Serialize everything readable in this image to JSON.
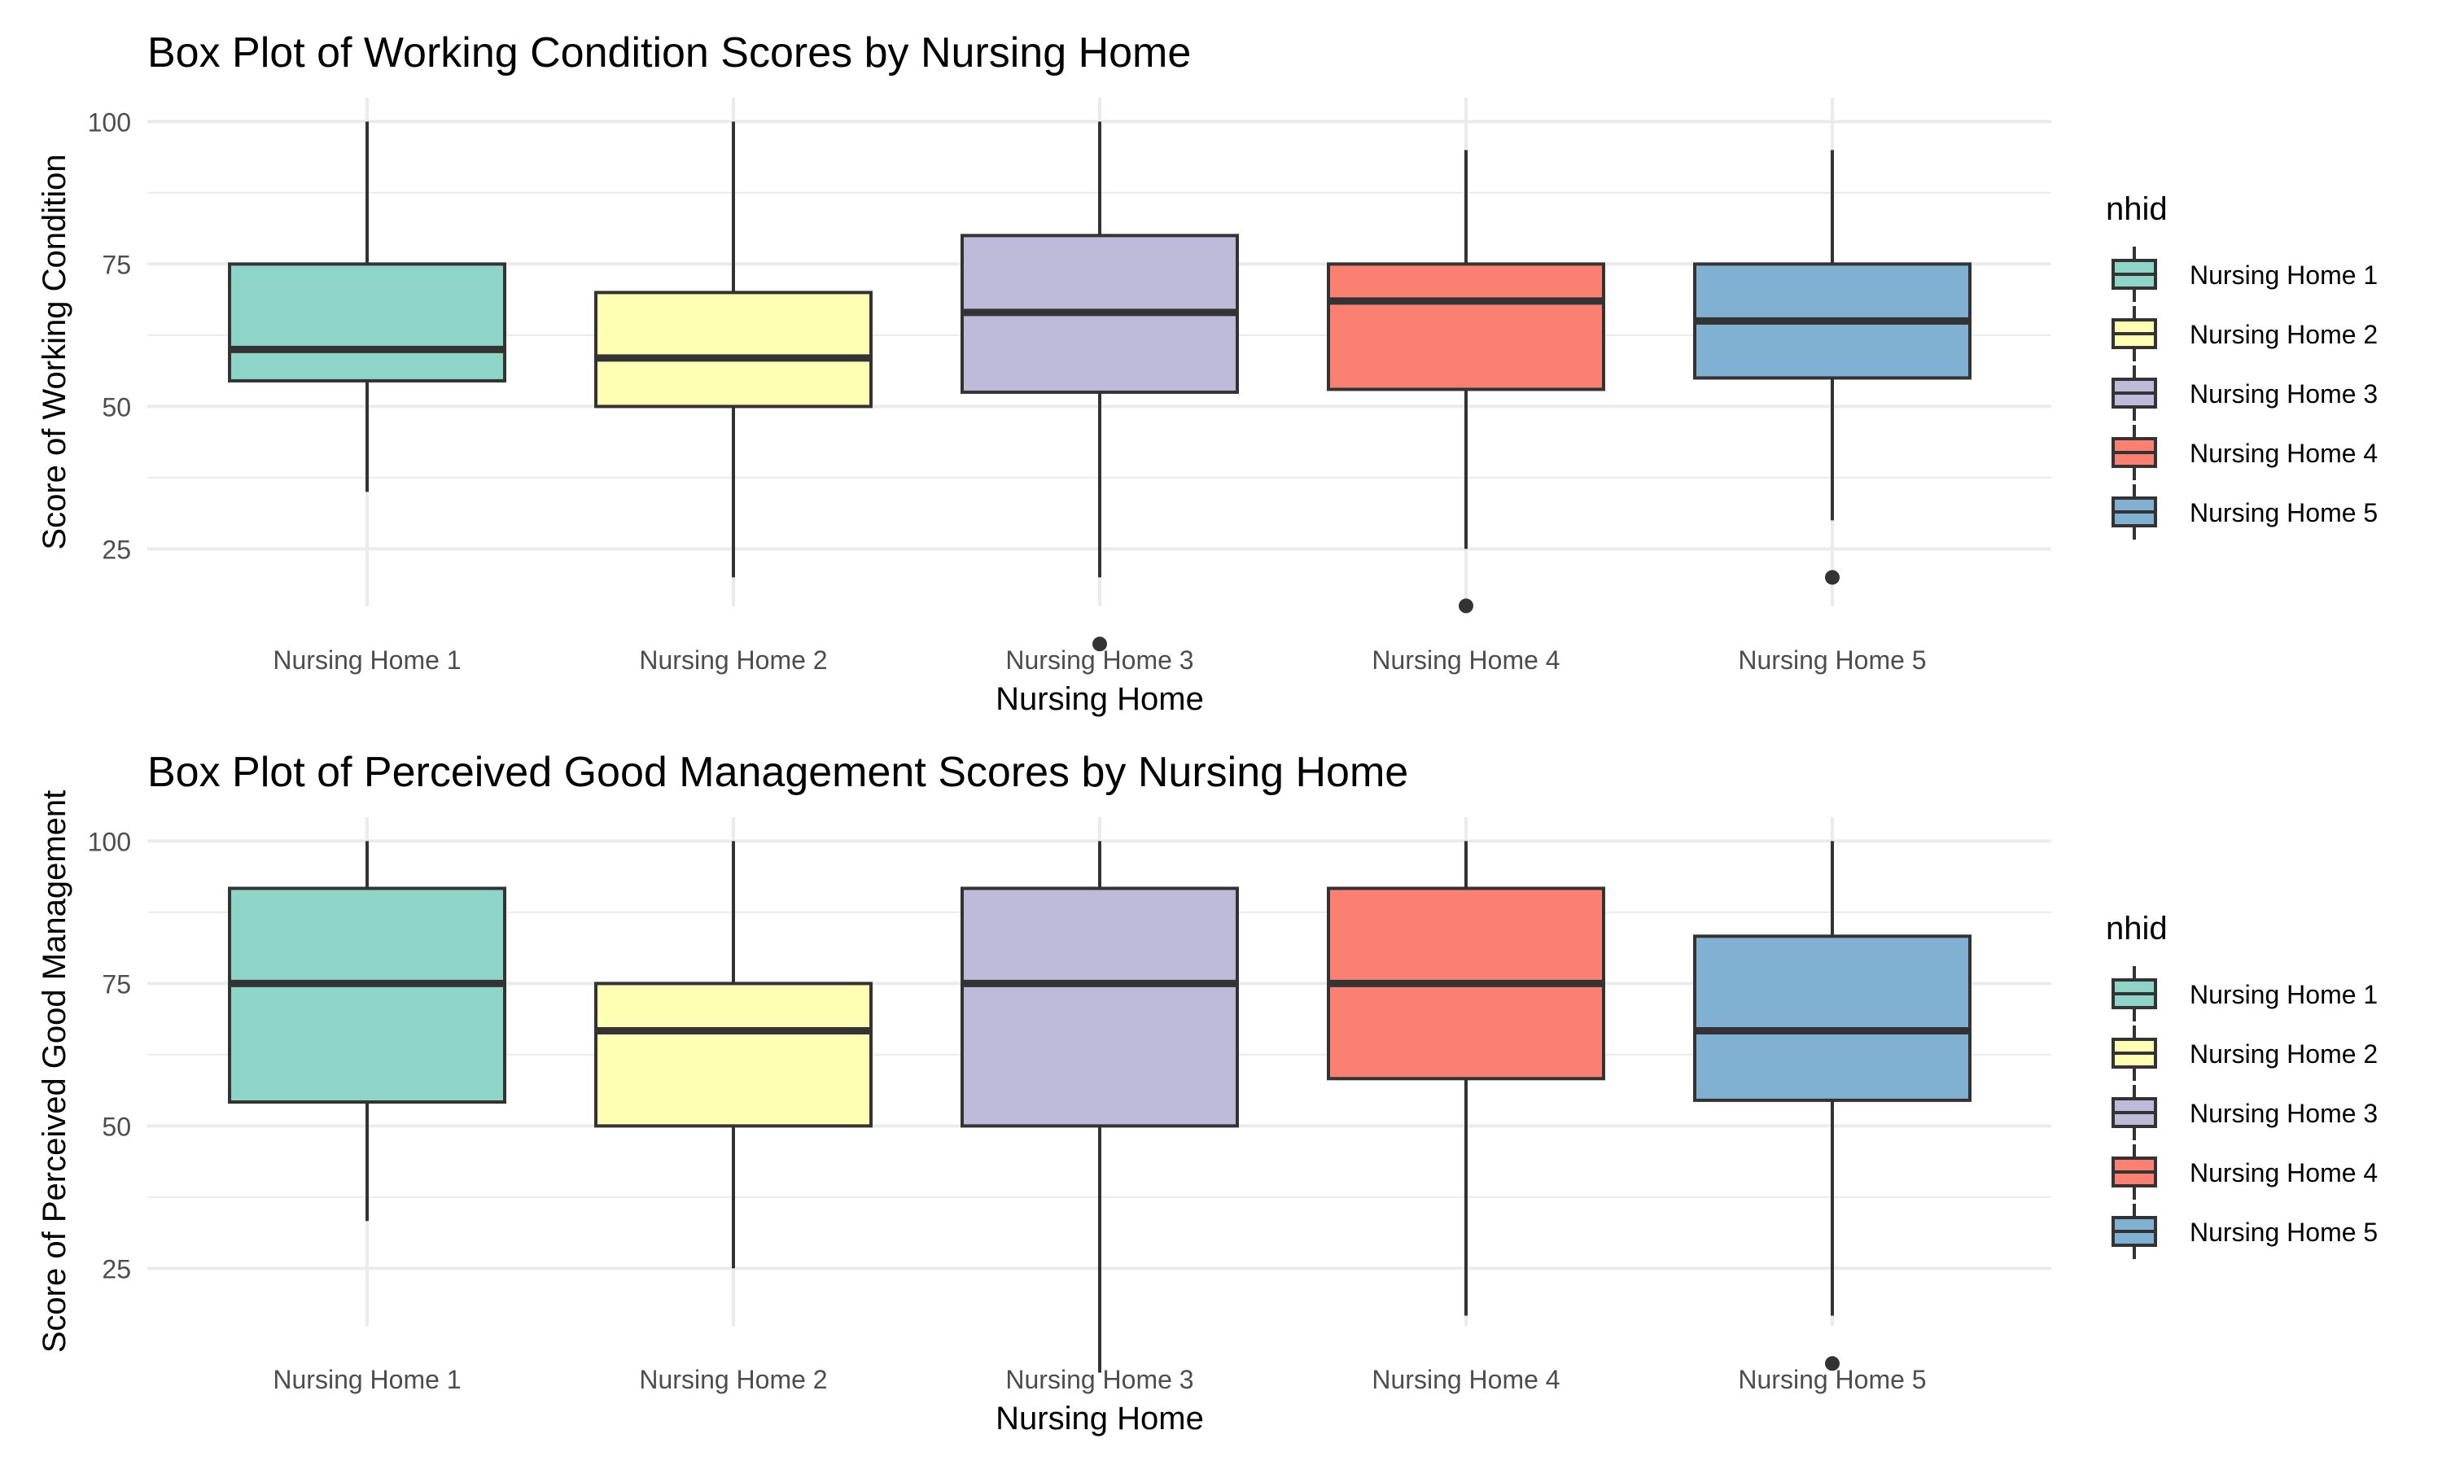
{
  "chart_data": [
    {
      "type": "box",
      "title": "Box Plot of Working Condition Scores by Nursing Home",
      "xlabel": "Nursing Home",
      "ylabel": "Score of Working Condition",
      "categories": [
        "Nursing Home 1",
        "Nursing Home 2",
        "Nursing Home 3",
        "Nursing Home 4",
        "Nursing Home 5"
      ],
      "ylim": [
        0,
        105
      ],
      "yticks": [
        25,
        50,
        75,
        100
      ],
      "grid": true,
      "boxes": [
        {
          "category": "Nursing Home 1",
          "whisker_low": 35,
          "q1": 54.5,
          "median": 60,
          "q3": 75,
          "whisker_high": 100,
          "outliers": []
        },
        {
          "category": "Nursing Home 2",
          "whisker_low": 20,
          "q1": 50,
          "median": 58.5,
          "q3": 70,
          "whisker_high": 100,
          "outliers": []
        },
        {
          "category": "Nursing Home 3",
          "whisker_low": 20,
          "q1": 52.5,
          "median": 66.5,
          "q3": 80,
          "whisker_high": 100,
          "outliers": [
            8.3
          ]
        },
        {
          "category": "Nursing Home 4",
          "whisker_low": 25,
          "q1": 53,
          "median": 68.5,
          "q3": 75,
          "whisker_high": 95,
          "outliers": [
            15
          ]
        },
        {
          "category": "Nursing Home 5",
          "whisker_low": 30,
          "q1": 55,
          "median": 65,
          "q3": 75,
          "whisker_high": 95,
          "outliers": [
            20
          ]
        }
      ],
      "legend": {
        "title": "nhid",
        "position": "right",
        "entries": [
          "Nursing Home 1",
          "Nursing Home 2",
          "Nursing Home 3",
          "Nursing Home 4",
          "Nursing Home 5"
        ]
      }
    },
    {
      "type": "box",
      "title": "Box Plot of Perceived Good Management Scores by Nursing Home",
      "xlabel": "Nursing Home",
      "ylabel": "Score of Perceived Good Management",
      "categories": [
        "Nursing Home 1",
        "Nursing Home 2",
        "Nursing Home 3",
        "Nursing Home 4",
        "Nursing Home 5"
      ],
      "ylim": [
        0,
        105
      ],
      "yticks": [
        25,
        50,
        75,
        100
      ],
      "grid": true,
      "boxes": [
        {
          "category": "Nursing Home 1",
          "whisker_low": 33.3,
          "q1": 54.2,
          "median": 75,
          "q3": 91.7,
          "whisker_high": 100,
          "outliers": []
        },
        {
          "category": "Nursing Home 2",
          "whisker_low": 25,
          "q1": 50,
          "median": 66.7,
          "q3": 75,
          "whisker_high": 100,
          "outliers": []
        },
        {
          "category": "Nursing Home 3",
          "whisker_low": 6.7,
          "q1": 50,
          "median": 75,
          "q3": 91.7,
          "whisker_high": 100,
          "outliers": []
        },
        {
          "category": "Nursing Home 4",
          "whisker_low": 16.7,
          "q1": 58.3,
          "median": 75,
          "q3": 91.7,
          "whisker_high": 100,
          "outliers": []
        },
        {
          "category": "Nursing Home 5",
          "whisker_low": 16.7,
          "q1": 54.5,
          "median": 66.7,
          "q3": 83.3,
          "whisker_high": 100,
          "outliers": [
            8.3
          ]
        }
      ],
      "legend": {
        "title": "nhid",
        "position": "right",
        "entries": [
          "Nursing Home 1",
          "Nursing Home 2",
          "Nursing Home 3",
          "Nursing Home 4",
          "Nursing Home 5"
        ]
      }
    }
  ],
  "colors": {
    "Nursing Home 1": "#8ed5c8",
    "Nursing Home 2": "#ffffb3",
    "Nursing Home 3": "#bebada",
    "Nursing Home 4": "#fb8072",
    "Nursing Home 5": "#80b1d3",
    "outline": "#333333",
    "grid": "#ebebeb",
    "tick_text": "#4d4d4d",
    "text": "#000000"
  }
}
